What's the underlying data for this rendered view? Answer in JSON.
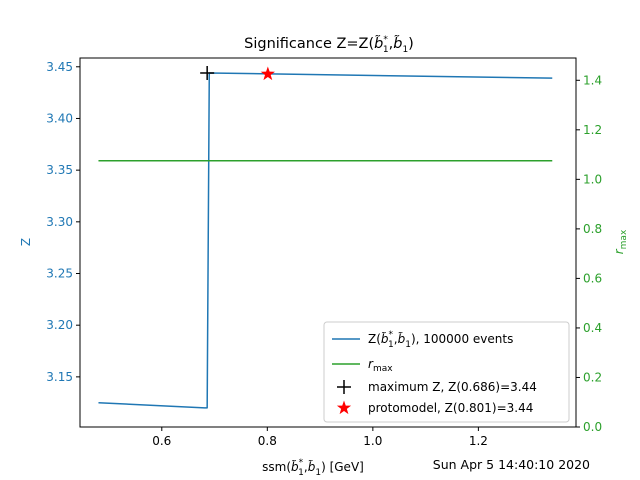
{
  "chart_data": {
    "type": "line",
    "title": "Significance Z=Z(b̃*₁,b̃₁)",
    "xlabel": "ssm(b̃*₁,b̃₁) [GeV]",
    "ylabel_left": "Z",
    "ylabel_right": "r_max",
    "xlim": [
      0.445,
      1.385
    ],
    "ylim_left": [
      3.1015,
      3.4585
    ],
    "ylim_right": [
      0.0,
      1.49
    ],
    "x_ticks": [
      0.6,
      0.8,
      1.0,
      1.2
    ],
    "x_tick_labels": [
      "0.6",
      "0.8",
      "1.0",
      "1.2"
    ],
    "y_left_ticks": [
      3.15,
      3.2,
      3.25,
      3.3,
      3.35,
      3.4,
      3.45
    ],
    "y_left_tick_labels": [
      "3.15",
      "3.20",
      "3.25",
      "3.30",
      "3.35",
      "3.40",
      "3.45"
    ],
    "y_right_ticks": [
      0.0,
      0.2,
      0.4,
      0.6,
      0.8,
      1.0,
      1.2,
      1.4
    ],
    "y_right_tick_labels": [
      "0.0",
      "0.2",
      "0.4",
      "0.6",
      "0.8",
      "1.0",
      "1.2",
      "1.4"
    ],
    "series": [
      {
        "name": "Z(b̃*₁,b̃₁), 100000 events",
        "axis": "left",
        "color": "#1f77b4",
        "x": [
          0.48,
          0.681,
          0.686,
          0.69,
          1.34
        ],
        "y": [
          3.125,
          3.12,
          3.12,
          3.444,
          3.439
        ]
      },
      {
        "name": "r_max",
        "axis": "right",
        "color": "#2ca02c",
        "x": [
          0.48,
          1.34
        ],
        "y": [
          1.075,
          1.075
        ]
      }
    ],
    "markers": [
      {
        "name": "maximum Z, Z(0.686)=3.44",
        "axis": "left",
        "x": 0.686,
        "y": 3.444,
        "symbol": "plus",
        "color": "#000000"
      },
      {
        "name": "protomodel, Z(0.801)=3.44",
        "axis": "left",
        "x": 0.801,
        "y": 3.443,
        "symbol": "star",
        "color": "#ff0000"
      }
    ],
    "legend_position": "lower-right",
    "grid": false
  },
  "timestamp": "Sun Apr  5 14:40:10 2020",
  "colors": {
    "left_axis": "#1f77b4",
    "right_axis": "#2ca02c"
  }
}
